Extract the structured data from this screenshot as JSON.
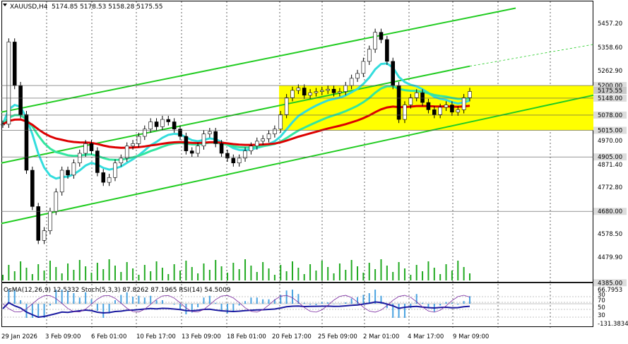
{
  "header": {
    "menu_icon": "triangle-down-icon",
    "symbol_tf": "XAUUSD,H4",
    "ohlc": "5174.85 5178.53 5158.28 5175.55"
  },
  "indicator_header": "OsMA(12,26,9) 12.5332  Stoch(5,3,3) 87.8262 87.1965  RSI(14) 54.5009",
  "price_axis": [
    "5457.20",
    "5358.60",
    "5262.90",
    "5175.55",
    "4970.00",
    "4871.40",
    "4772.80",
    "4578.50",
    "4479.90"
  ],
  "key_levels": [
    "5200.00",
    "5148.00",
    "5078.00",
    "5015.00",
    "4905.00",
    "4680.00",
    "4385.00"
  ],
  "indicator_axis": [
    "66.7953",
    "30",
    "70",
    "50",
    "30",
    "-131.3834"
  ],
  "time_axis": [
    "29 Jan 2026",
    "3 Feb 09:00",
    "6 Feb 01:00",
    "10 Feb 17:00",
    "13 Feb 09:00",
    "18 Feb 01:00",
    "20 Feb 17:00",
    "25 Feb 09:00",
    "2 Mar 01:00",
    "4 Mar 17:00",
    "9 Mar 09:00"
  ],
  "colors": {
    "zone": "#ffff00",
    "channel": "#22cc22",
    "ema_fast": "#33dddd",
    "ema_mid": "#33e6a0",
    "ema_slow": "#dd0000",
    "volume": "#22aa22",
    "current_price_bg": "#c0c0c0"
  },
  "chart_data": {
    "type": "candlestick",
    "symbol": "XAUUSD",
    "timeframe": "H4",
    "current": {
      "open": 5174.85,
      "high": 5178.53,
      "low": 5158.28,
      "close": 5175.55
    },
    "price_range": [
      4385,
      5520
    ],
    "support_resistance": [
      5200,
      5148,
      5078,
      5015,
      4905,
      4680,
      4385
    ],
    "close_series": [
      5040,
      5380,
      5200,
      5080,
      4850,
      4700,
      4560,
      4600,
      4680,
      4760,
      4850,
      4830,
      4880,
      4920,
      4960,
      4930,
      4840,
      4800,
      4820,
      4880,
      4900,
      4950,
      4960,
      4990,
      5020,
      5050,
      5030,
      5060,
      5050,
      5020,
      4990,
      4930,
      4920,
      4950,
      5000,
      5010,
      4960,
      4920,
      4900,
      4880,
      4900,
      4930,
      4950,
      4970,
      4980,
      5000,
      5020,
      5080,
      5150,
      5180,
      5190,
      5160,
      5170,
      5175,
      5180,
      5185,
      5170,
      5175,
      5200,
      5230,
      5250,
      5300,
      5350,
      5420,
      5390,
      5300,
      5200,
      5060,
      5120,
      5150,
      5170,
      5130,
      5100,
      5080,
      5110,
      5120,
      5090,
      5100,
      5150,
      5175.55
    ]
  }
}
